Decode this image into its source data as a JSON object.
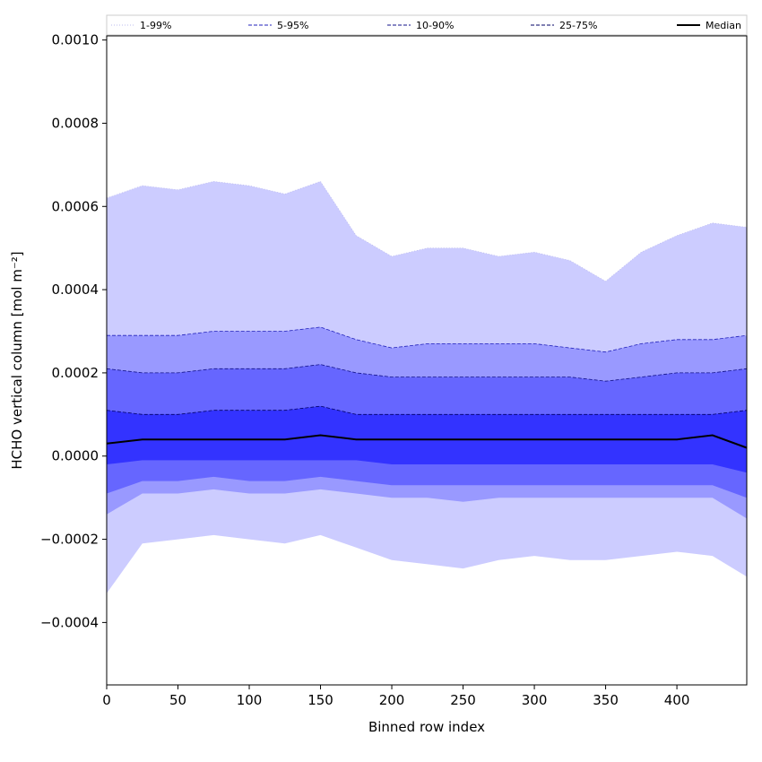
{
  "chart_data": {
    "type": "area",
    "xlabel": "Binned row index",
    "ylabel": "HCHO vertical column [mol m⁻²]",
    "xlim": [
      0,
      449
    ],
    "ylim": [
      -0.00055,
      0.00101
    ],
    "xticks": [
      0,
      50,
      100,
      150,
      200,
      250,
      300,
      350,
      400
    ],
    "xtick_labels": [
      "0",
      "50",
      "100",
      "150",
      "200",
      "250",
      "300",
      "350",
      "400"
    ],
    "yticks": [
      -0.0004,
      -0.0002,
      0.0,
      0.0002,
      0.0004,
      0.0006,
      0.0008,
      0.001
    ],
    "ytick_labels": [
      "−0.0004",
      "−0.0002",
      "0.0000",
      "0.0002",
      "0.0004",
      "0.0006",
      "0.0008",
      "0.0010"
    ],
    "grid": false,
    "legend_placement": "top (above plot, single row)",
    "x": [
      0,
      25,
      50,
      75,
      100,
      125,
      150,
      175,
      200,
      225,
      250,
      275,
      300,
      325,
      350,
      375,
      400,
      425,
      449
    ],
    "series": [
      {
        "name": "1-99%",
        "line_style": "dotted",
        "fill": "#ccccff",
        "lower": [
          -0.00033,
          -0.00021,
          -0.0002,
          -0.00019,
          -0.0002,
          -0.00021,
          -0.00019,
          -0.00022,
          -0.00025,
          -0.00026,
          -0.00027,
          -0.00025,
          -0.00024,
          -0.00025,
          -0.00025,
          -0.00024,
          -0.00023,
          -0.00024,
          -0.00029
        ],
        "upper": [
          0.00062,
          0.00065,
          0.00064,
          0.00066,
          0.00065,
          0.00063,
          0.00066,
          0.00053,
          0.00048,
          0.0005,
          0.0005,
          0.00048,
          0.00049,
          0.00047,
          0.00042,
          0.00049,
          0.00053,
          0.00056,
          0.00055
        ]
      },
      {
        "name": "5-95%",
        "line_style": "dashed",
        "fill": "#9999ff",
        "lower": [
          -0.00014,
          -9e-05,
          -9e-05,
          -8e-05,
          -9e-05,
          -9e-05,
          -8e-05,
          -9e-05,
          -0.0001,
          -0.0001,
          -0.00011,
          -0.0001,
          -0.0001,
          -0.0001,
          -0.0001,
          -0.0001,
          -0.0001,
          -0.0001,
          -0.00015
        ],
        "upper": [
          0.00029,
          0.00029,
          0.00029,
          0.0003,
          0.0003,
          0.0003,
          0.00031,
          0.00028,
          0.00026,
          0.00027,
          0.00027,
          0.00027,
          0.00027,
          0.00026,
          0.00025,
          0.00027,
          0.00028,
          0.00028,
          0.00029
        ]
      },
      {
        "name": "10-90%",
        "line_style": "dashed",
        "fill": "#6666ff",
        "lower": [
          -9e-05,
          -6e-05,
          -6e-05,
          -5e-05,
          -6e-05,
          -6e-05,
          -5e-05,
          -6e-05,
          -7e-05,
          -7e-05,
          -7e-05,
          -7e-05,
          -7e-05,
          -7e-05,
          -7e-05,
          -7e-05,
          -7e-05,
          -7e-05,
          -0.0001
        ],
        "upper": [
          0.00021,
          0.0002,
          0.0002,
          0.00021,
          0.00021,
          0.00021,
          0.00022,
          0.0002,
          0.00019,
          0.00019,
          0.00019,
          0.00019,
          0.00019,
          0.00019,
          0.00018,
          0.00019,
          0.0002,
          0.0002,
          0.00021
        ]
      },
      {
        "name": "25-75%",
        "line_style": "dashed",
        "fill": "#3333ff",
        "lower": [
          -2e-05,
          -1e-05,
          -1e-05,
          -1e-05,
          -1e-05,
          -1e-05,
          -1e-05,
          -1e-05,
          -2e-05,
          -2e-05,
          -2e-05,
          -2e-05,
          -2e-05,
          -2e-05,
          -2e-05,
          -2e-05,
          -2e-05,
          -2e-05,
          -4e-05
        ],
        "upper": [
          0.00011,
          0.0001,
          0.0001,
          0.00011,
          0.00011,
          0.00011,
          0.00012,
          0.0001,
          0.0001,
          0.0001,
          0.0001,
          0.0001,
          0.0001,
          0.0001,
          0.0001,
          0.0001,
          0.0001,
          0.0001,
          0.00011
        ]
      },
      {
        "name": "Median",
        "line_style": "solid",
        "color": "#000000",
        "values": [
          3e-05,
          4e-05,
          4e-05,
          4e-05,
          4e-05,
          4e-05,
          5e-05,
          4e-05,
          4e-05,
          4e-05,
          4e-05,
          4e-05,
          4e-05,
          4e-05,
          4e-05,
          4e-05,
          4e-05,
          5e-05,
          2e-05
        ]
      }
    ]
  }
}
